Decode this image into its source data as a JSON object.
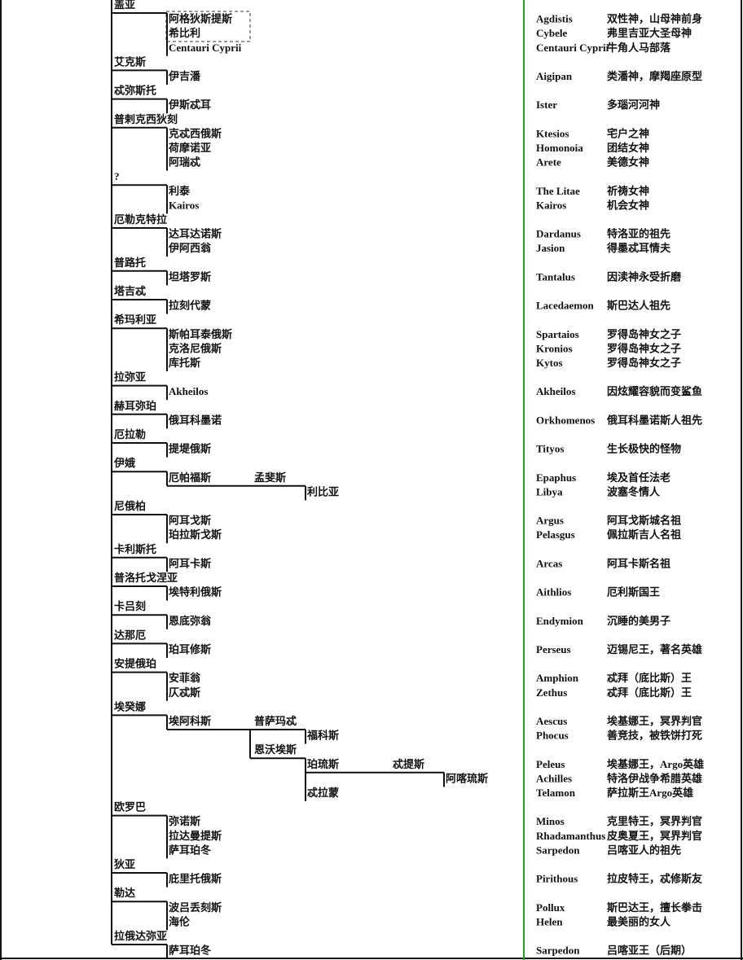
{
  "groups": [
    {
      "mother": "盖亚",
      "children": [
        {
          "name": "阿格狄斯提斯",
          "en": "Agdistis",
          "zh": "双性神，山母神前身"
        },
        {
          "name": "希比利",
          "en": "Cybele",
          "zh": "弗里吉亚大圣母神"
        },
        {
          "name": "Centauri Cyprii",
          "en": "Centauri Cyprii",
          "zh": "牛角人马部落"
        }
      ]
    },
    {
      "mother": "艾克斯",
      "children": [
        {
          "name": "伊吉潘",
          "en": "Aigipan",
          "zh": "类潘神，摩羯座原型"
        }
      ]
    },
    {
      "mother": "忒弥斯托",
      "color": "#1f4e9a",
      "children": [
        {
          "name": "伊斯忒耳",
          "en": "Ister",
          "zh": "多瑙河河神"
        }
      ]
    },
    {
      "mother": "普剌克西狄刻",
      "children": [
        {
          "name": "克忒西俄斯",
          "en": "Ktesios",
          "zh": "宅户之神"
        },
        {
          "name": "荷摩诺亚",
          "en": "Homonoia",
          "zh": "团结女神"
        },
        {
          "name": "阿瑞忒",
          "en": "Arete",
          "zh": "美德女神"
        }
      ]
    },
    {
      "mother": "?",
      "children": [
        {
          "name": "利泰",
          "en": "The Litae",
          "zh": "祈祷女神"
        },
        {
          "name": "Kairos",
          "en": "Kairos",
          "zh": "机会女神"
        }
      ]
    },
    {
      "mother": "厄勒克特拉",
      "color": "#1f4e9a",
      "children": [
        {
          "name": "达耳达诺斯",
          "en": "Dardanus",
          "zh": "特洛亚的祖先"
        },
        {
          "name": "伊阿西翁",
          "en": "Jasion",
          "zh": "得墨忒耳情夫"
        }
      ]
    },
    {
      "mother": "普路托",
      "color": "#1f4e9a",
      "children": [
        {
          "name": "坦塔罗斯",
          "en": "Tantalus",
          "zh": "因渎神永受折磨"
        }
      ]
    },
    {
      "mother": "塔吉忒",
      "children": [
        {
          "name": "拉刻代蒙",
          "en": "Lacedaemon",
          "zh": "斯巴达人祖先"
        }
      ]
    },
    {
      "mother": "希玛利亚",
      "children": [
        {
          "name": "斯帕耳泰俄斯",
          "en": "Spartaios",
          "zh": "罗得岛神女之子"
        },
        {
          "name": "克洛尼俄斯",
          "en": "Kronios",
          "zh": "罗得岛神女之子"
        },
        {
          "name": "库托斯",
          "en": "Kytos",
          "zh": "罗得岛神女之子"
        }
      ]
    },
    {
      "mother": "拉弥亚",
      "children": [
        {
          "name": "Akheilos",
          "en": "Akheilos",
          "zh": "因炫耀容貌而变鲨鱼"
        }
      ]
    },
    {
      "mother": "赫耳弥珀",
      "children": [
        {
          "name": "俄耳科墨诺",
          "en": "Orkhomenos",
          "zh": "俄耳科墨诺斯人祖先"
        }
      ]
    },
    {
      "mother": "厄拉勒",
      "color": "#1f4e9a",
      "children": [
        {
          "name": "提堤俄斯",
          "en": "Tityos",
          "zh": "生长极快的怪物"
        }
      ]
    },
    {
      "mother": "伊娥",
      "color": "#1f4e9a",
      "children": [
        {
          "name": "厄帕福斯",
          "en": "Epaphus",
          "zh": "埃及首任法老",
          "unions": [
            {
              "spouse": "孟斐斯",
              "color": "#1f4e9a",
              "children": [
                {
                  "name": "利比亚",
                  "en": "Libya",
                  "zh": "波塞冬情人"
                }
              ]
            }
          ]
        }
      ]
    },
    {
      "mother": "尼俄柏",
      "children": [
        {
          "name": "阿耳戈斯",
          "en": "Argus",
          "zh": "阿耳戈斯城名祖"
        },
        {
          "name": "珀拉斯戈斯",
          "en": "Pelasgus",
          "zh": "佩拉斯吉人名祖"
        }
      ]
    },
    {
      "mother": "卡利斯托",
      "color": "#1f4e9a",
      "children": [
        {
          "name": "阿耳卡斯",
          "en": "Arcas",
          "zh": "阿耳卡斯名祖"
        }
      ]
    },
    {
      "mother": "普洛托戈涅亚",
      "children": [
        {
          "name": "埃特利俄斯",
          "en": "Aithlios",
          "zh": "厄利斯国王"
        }
      ]
    },
    {
      "mother": "卡吕刻",
      "children": [
        {
          "name": "恩底弥翁",
          "en": "Endymion",
          "zh": "沉睡的美男子"
        }
      ]
    },
    {
      "mother": "达那厄",
      "children": [
        {
          "name": "珀耳修斯",
          "en": "Perseus",
          "zh": "迈锡尼王，著名英雄"
        }
      ]
    },
    {
      "mother": "安提俄珀",
      "children": [
        {
          "name": "安菲翁",
          "en": "Amphion",
          "zh": "忒拜（底比斯）王"
        },
        {
          "name": "仄忒斯",
          "en": "Zethus",
          "zh": "忒拜（底比斯）王"
        }
      ]
    },
    {
      "mother": "埃癸娜",
      "color": "#1f4e9a",
      "children": [
        {
          "name": "埃阿科斯",
          "en": "Aescus",
          "zh": "埃基娜王，冥界判官",
          "unions": [
            {
              "spouse": "普萨玛忒",
              "color": "#1f4e9a",
              "children": [
                {
                  "name": "福科斯",
                  "en": "Phocus",
                  "zh": "善竞技，被铁饼打死"
                }
              ]
            },
            {
              "spouse": "恩沃埃斯",
              "children": [
                {
                  "name": "珀琉斯",
                  "en": "Peleus",
                  "zh": "埃基娜王，Argo英雄",
                  "unions": [
                    {
                      "spouse": "忒提斯",
                      "color": "#1f4e9a",
                      "children": [
                        {
                          "name": "阿喀琉斯",
                          "en": "Achilles",
                          "zh": "特洛伊战争希腊英雄"
                        }
                      ]
                    }
                  ]
                },
                {
                  "name": "忒拉蒙",
                  "en": "Telamon",
                  "zh": "萨拉斯王Argo英雄"
                }
              ]
            }
          ]
        }
      ]
    },
    {
      "mother": "欧罗巴",
      "children": [
        {
          "name": "弥诺斯",
          "en": "Minos",
          "zh": "克里特王，冥界判官"
        },
        {
          "name": "拉达曼提斯",
          "en": "Rhadamanthus",
          "zh": "皮奥夏王，冥界判官"
        },
        {
          "name": "萨耳珀冬",
          "en": "Sarpedon",
          "zh": "吕喀亚人的祖先"
        }
      ]
    },
    {
      "mother": "狄亚",
      "children": [
        {
          "name": "庇里托俄斯",
          "en": "Pirithous",
          "zh": "拉皮特王，忒修斯友"
        }
      ]
    },
    {
      "mother": "勒达",
      "children": [
        {
          "name": "波吕丢刻斯",
          "en": "Pollux",
          "zh": "斯巴达王，擅长拳击"
        },
        {
          "name": "海伦",
          "en": "Helen",
          "zh": "最美丽的女人"
        }
      ]
    },
    {
      "mother": "拉俄达弥亚",
      "children": [
        {
          "name": "萨耳珀冬",
          "en": "Sarpedon",
          "zh": "吕喀亚王（后期）"
        }
      ]
    }
  ]
}
